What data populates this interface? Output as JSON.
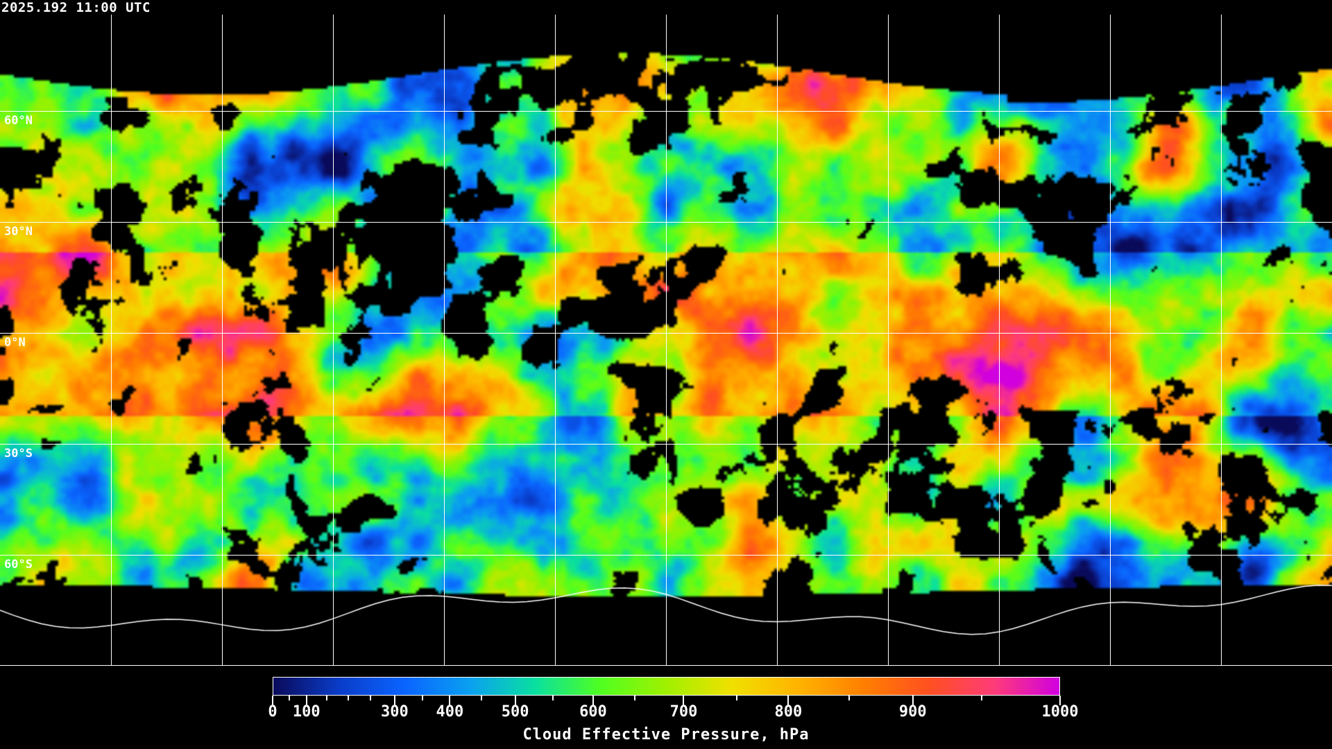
{
  "timestamp": "2025.192 11:00 UTC",
  "map": {
    "projection": "equirectangular",
    "latitude_labels": [
      "60°N",
      "30°N",
      "0°N",
      "30°S",
      "60°S"
    ],
    "gridline_spacing_deg": 30,
    "gridline_color": "#ffffff",
    "coastline_color": "#ffffff",
    "no_data_color": "#000000"
  },
  "colorbar": {
    "title": "Cloud Effective Pressure, hPa",
    "range": [
      0,
      1000
    ],
    "tick_labels": [
      "0",
      "100",
      "300",
      "400",
      "500",
      "600",
      "700",
      "800",
      "900",
      "1000"
    ],
    "colors": [
      "#0a0a5a",
      "#0a3cc8",
      "#0a64ff",
      "#0aa0f0",
      "#0ae0a0",
      "#50ff20",
      "#a0f000",
      "#f0e000",
      "#ffb400",
      "#ff8000",
      "#ff5020",
      "#ff3c78",
      "#d000e0"
    ]
  }
}
